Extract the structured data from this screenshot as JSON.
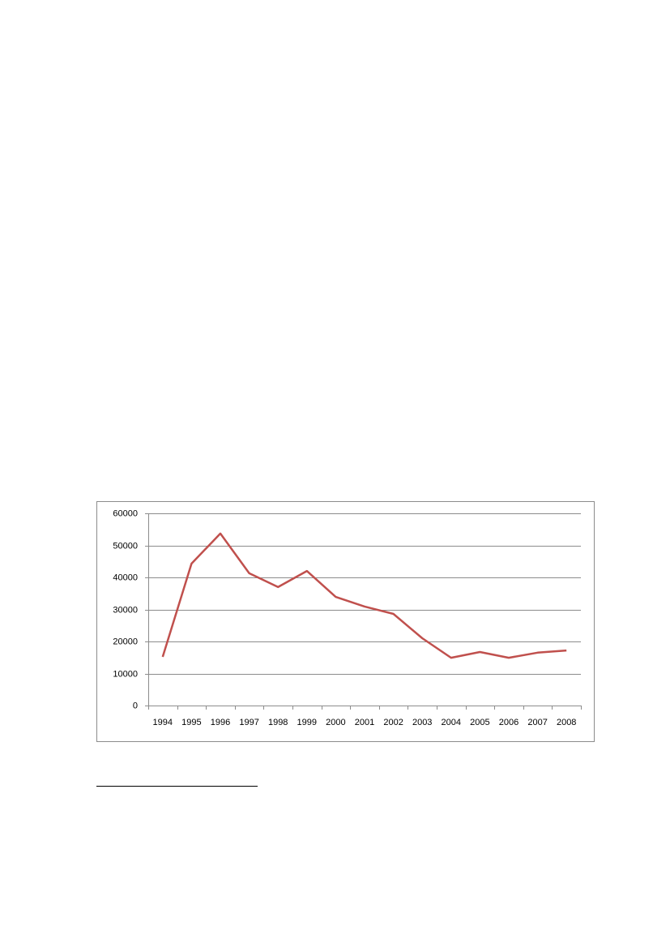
{
  "chart_data": {
    "type": "line",
    "categories": [
      "1994",
      "1995",
      "1996",
      "1997",
      "1998",
      "1999",
      "2000",
      "2001",
      "2002",
      "2003",
      "2004",
      "2005",
      "2006",
      "2007",
      "2008"
    ],
    "series": [
      {
        "color": "#c0504d",
        "values": [
          15200,
          44300,
          53700,
          41300,
          37000,
          42000,
          33900,
          30900,
          28600,
          21000,
          14900,
          16700,
          14900,
          16500,
          17200
        ]
      }
    ],
    "ylim": [
      0,
      60000
    ],
    "yticks": [
      0,
      10000,
      20000,
      30000,
      40000,
      50000,
      60000
    ],
    "grid": true
  }
}
